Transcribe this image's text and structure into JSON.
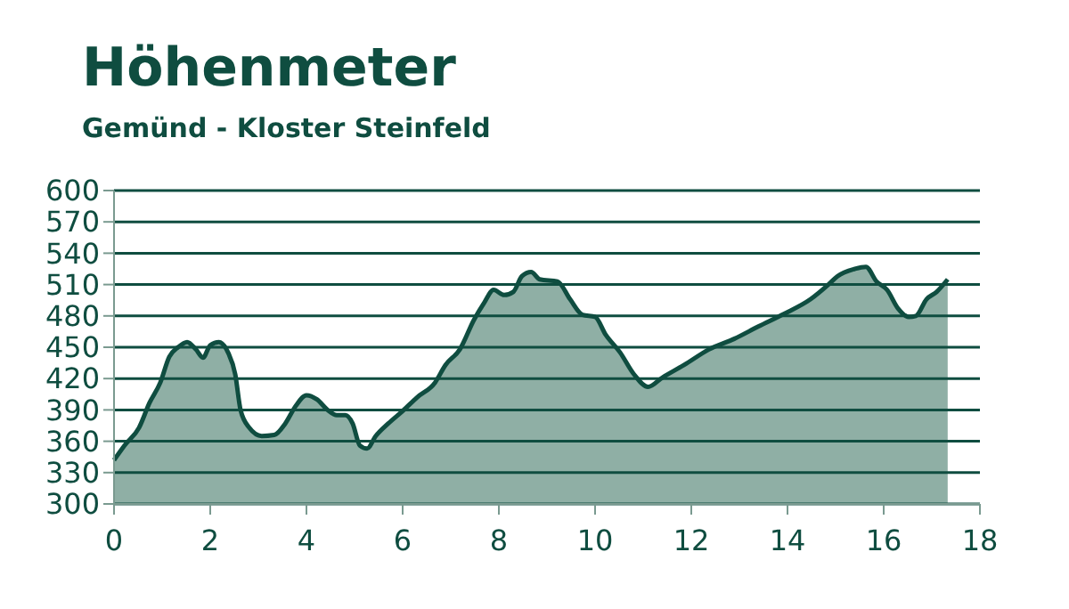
{
  "chart_data": {
    "type": "area",
    "title": "Höhenmeter",
    "subtitle": "Gemünd - Kloster Steinfeld",
    "x": [
      0,
      0.22,
      0.52,
      0.74,
      0.96,
      1.15,
      1.33,
      1.52,
      1.7,
      1.85,
      2.0,
      2.18,
      2.37,
      2.52,
      2.63,
      2.81,
      3.07,
      3.33,
      3.56,
      3.78,
      4.0,
      4.22,
      4.44,
      4.63,
      4.81,
      4.96,
      5.11,
      5.26,
      5.44,
      5.7,
      6.0,
      6.3,
      6.67,
      6.89,
      7.19,
      7.48,
      7.7,
      7.89,
      8.11,
      8.3,
      8.48,
      8.67,
      8.85,
      9.22,
      9.48,
      9.74,
      10.0,
      10.22,
      10.52,
      10.81,
      11.1,
      11.4,
      11.85,
      12.37,
      12.89,
      13.4,
      13.93,
      14.48,
      14.85,
      15.04,
      15.4,
      15.63,
      15.85,
      16.07,
      16.3,
      16.52,
      16.67,
      16.89,
      17.1,
      17.33
    ],
    "series": [
      {
        "color": "#8fafa5",
        "values": [
          342,
          356,
          373,
          397,
          416,
          441,
          450,
          455,
          448,
          440,
          452,
          455,
          445,
          424,
          390,
          373,
          365,
          366,
          377,
          394,
          404,
          400,
          390,
          385,
          385,
          377,
          356,
          353,
          365,
          377,
          389,
          402,
          416,
          433,
          448,
          476,
          493,
          505,
          500,
          503,
          518,
          522,
          515,
          513,
          496,
          481,
          479,
          462,
          445,
          424,
          412,
          421,
          433,
          448,
          458,
          470,
          482,
          496,
          510,
          518,
          525,
          527,
          513,
          505,
          487,
          479,
          480,
          496,
          503,
          515
        ]
      }
    ],
    "xlim": [
      0,
      18
    ],
    "xticks": [
      0,
      2,
      4,
      6,
      8,
      10,
      12,
      14,
      16,
      18
    ],
    "ylim": [
      300,
      600
    ],
    "yticks": [
      300,
      330,
      360,
      390,
      420,
      450,
      480,
      510,
      540,
      570,
      600
    ],
    "grid": "y"
  }
}
